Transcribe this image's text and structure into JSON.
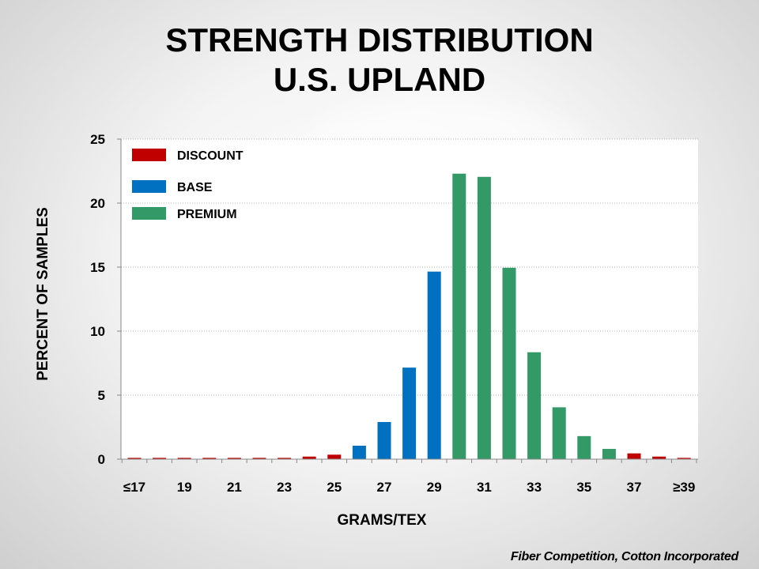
{
  "title": {
    "line1": "STRENGTH DISTRIBUTION",
    "line2": "U.S. UPLAND"
  },
  "source": "Fiber Competition, Cotton Incorporated",
  "chart_data": {
    "type": "bar",
    "xlabel": "GRAMS/TEX",
    "ylabel": "PERCENT OF SAMPLES",
    "ylim": [
      0,
      25
    ],
    "yticks": [
      0,
      5,
      10,
      15,
      20,
      25
    ],
    "grid": true,
    "legend_placement": "top-left",
    "categories": [
      "≤17",
      "18",
      "19",
      "20",
      "21",
      "22",
      "23",
      "24",
      "25",
      "26",
      "27",
      "28",
      "29",
      "30",
      "31",
      "32",
      "33",
      "34",
      "35",
      "36",
      "37",
      "38",
      "≥39"
    ],
    "tick_labels": [
      "≤17",
      "19",
      "21",
      "23",
      "25",
      "27",
      "29",
      "31",
      "33",
      "35",
      "37",
      "≥39"
    ],
    "values": [
      0.1,
      0.1,
      0.1,
      0.1,
      0.1,
      0.1,
      0.1,
      0.2,
      0.35,
      1.05,
      2.9,
      7.15,
      14.65,
      22.3,
      22.05,
      14.95,
      8.35,
      4.05,
      1.8,
      0.8,
      0.45,
      0.2,
      0.1
    ],
    "groups": [
      "DISCOUNT",
      "DISCOUNT",
      "DISCOUNT",
      "DISCOUNT",
      "DISCOUNT",
      "DISCOUNT",
      "DISCOUNT",
      "DISCOUNT",
      "DISCOUNT",
      "BASE",
      "BASE",
      "BASE",
      "BASE",
      "PREMIUM",
      "PREMIUM",
      "PREMIUM",
      "PREMIUM",
      "PREMIUM",
      "PREMIUM",
      "PREMIUM",
      "DISCOUNT",
      "DISCOUNT",
      "DISCOUNT"
    ],
    "legend": [
      {
        "name": "DISCOUNT",
        "color": "#c00000"
      },
      {
        "name": "BASE",
        "color": "#0070c0"
      },
      {
        "name": "PREMIUM",
        "color": "#339966"
      }
    ]
  }
}
